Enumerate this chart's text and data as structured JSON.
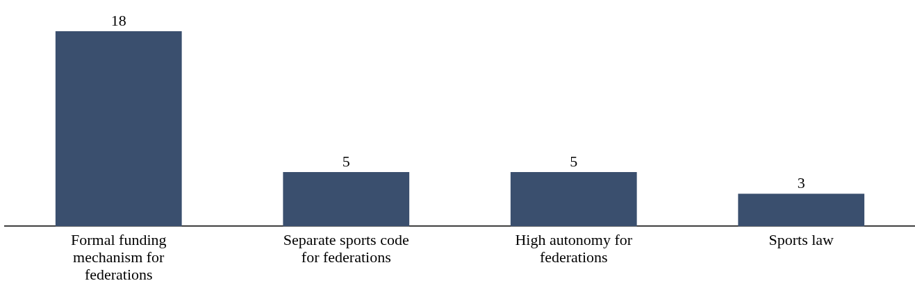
{
  "chart_data": {
    "type": "bar",
    "categories": [
      "Formal funding mechanism for federations",
      "Separate sports code for federations",
      "High autonomy for federations",
      "Sports law"
    ],
    "values": [
      18,
      5,
      5,
      3
    ],
    "color": "#3a4f6e",
    "data_labels": true,
    "grid": false,
    "legend": false,
    "ylim": [
      0,
      18
    ]
  }
}
